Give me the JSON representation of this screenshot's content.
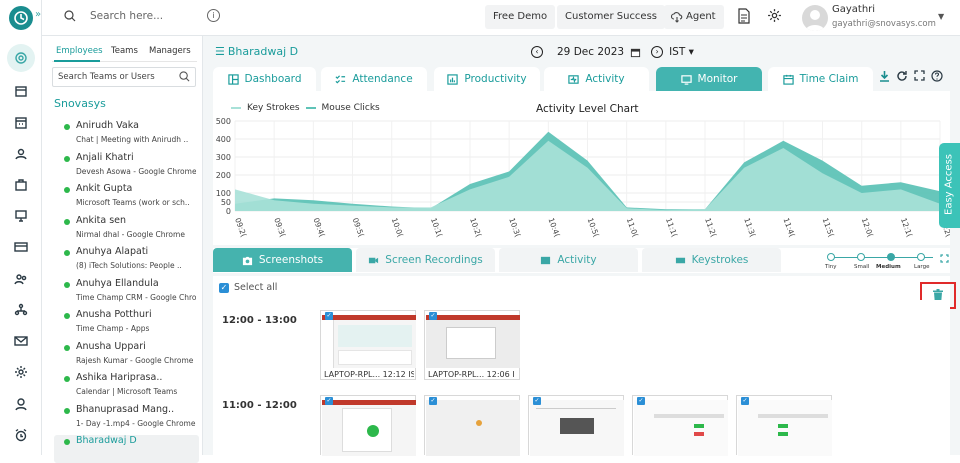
{
  "topbar": {
    "search_placeholder": "Search here...",
    "free_demo": "Free Demo",
    "customer_success": "Customer Success",
    "agent": "Agent",
    "user_name": "Gayathri",
    "user_email": "gayathri@snovasys.com"
  },
  "sidebar": {
    "tabs": [
      "Employees",
      "Teams",
      "Managers"
    ],
    "search_placeholder": "Search Teams or Users",
    "org": "Snovasys",
    "employees": [
      {
        "name": "Anirudh Vaka",
        "status": "Chat | Meeting with Anirudh ..",
        "active": false
      },
      {
        "name": "Anjali Khatri",
        "status": "Devesh Asowa - Google Chrome",
        "active": false
      },
      {
        "name": "Ankit Gupta",
        "status": "Microsoft Teams (work or sch..",
        "active": false
      },
      {
        "name": "Ankita sen",
        "status": "Nirmal dhal - Google Chrome",
        "active": false
      },
      {
        "name": "Anuhya Alapati",
        "status": "(8) iTech Solutions: People ..",
        "active": false
      },
      {
        "name": "Anuhya Ellandula",
        "status": "Time Champ CRM - Google Chrom",
        "active": false
      },
      {
        "name": "Anusha Potthuri",
        "status": "Time Champ - Apps",
        "active": false
      },
      {
        "name": "Anusha Uppari",
        "status": "Rajesh Kumar - Google Chrome",
        "active": false
      },
      {
        "name": "Ashika Hariprasa..",
        "status": "Calendar | Microsoft Teams",
        "active": false
      },
      {
        "name": "Bhanuprasad Mang..",
        "status": "1- Day -1.mp4 - Google Chrome",
        "active": false
      },
      {
        "name": "Bharadwaj D",
        "status": "",
        "active": true
      }
    ]
  },
  "header": {
    "employee": "Bharadwaj D",
    "date": "29 Dec 2023",
    "timezone": "IST"
  },
  "tabs": [
    {
      "label": "Dashboard",
      "icon": "dashboard-icon"
    },
    {
      "label": "Attendance",
      "icon": "attendance-icon"
    },
    {
      "label": "Productivity",
      "icon": "productivity-icon"
    },
    {
      "label": "Activity",
      "icon": "activity-icon"
    },
    {
      "label": "Monitor",
      "icon": "monitor-icon"
    },
    {
      "label": "Time Claim",
      "icon": "calendar-icon"
    }
  ],
  "chart_data": {
    "type": "area",
    "title": "Activity Level Chart",
    "series": [
      {
        "name": "Key Strokes",
        "values": [
          120,
          60,
          40,
          30,
          20,
          20,
          120,
          190,
          390,
          240,
          15,
          5,
          10,
          240,
          350,
          210,
          100,
          120,
          40
        ]
      },
      {
        "name": "Mouse Clicks",
        "values": [
          40,
          70,
          60,
          40,
          25,
          15,
          150,
          220,
          440,
          280,
          20,
          10,
          10,
          270,
          390,
          280,
          140,
          160,
          110
        ]
      }
    ],
    "x": [
      "09:20",
      "09:30",
      "09:40",
      "09:50",
      "10:00",
      "10:10",
      "10:20",
      "10:30",
      "10:40",
      "10:50",
      "11:00",
      "11:10",
      "11:20",
      "11:30",
      "11:40",
      "11:50",
      "12:00",
      "12:10",
      "12:20"
    ],
    "x_ticks_visible": [
      "09:2(",
      "09:3(",
      "09:4(",
      "09:5(",
      "10:0(",
      "10:1(",
      "10:2(",
      "10:3(",
      "10:4(",
      "10:5(",
      "11:0(",
      "11:1(",
      "11:2(",
      "11:3(",
      "11:4(",
      "11:5(",
      "12:0(",
      "12:1(",
      "12:2("
    ],
    "yticks": [
      0,
      50,
      100,
      200,
      300,
      400,
      500
    ],
    "ylim": [
      0,
      500
    ],
    "grid": true,
    "legend": "top-left",
    "colors": {
      "Key Strokes": "#a8e1d8",
      "Mouse Clicks": "#5fc3b7"
    }
  },
  "subtabs": [
    "Screenshots",
    "Screen Recordings",
    "Activity",
    "Keystrokes"
  ],
  "sizes": {
    "labels": [
      "Tiny",
      "Small",
      "Medium",
      "Large"
    ],
    "selected": "Medium"
  },
  "select_all": "Select all",
  "screenshots": {
    "groups": [
      {
        "hour": "12:00 - 13:00",
        "items": [
          {
            "caption": "LAPTOP-RPL... 12:12 IS"
          },
          {
            "caption": "LAPTOP-RPL... 12:06 I"
          }
        ]
      },
      {
        "hour": "11:00 - 12:00",
        "items": [
          {
            "caption": ""
          },
          {
            "caption": ""
          },
          {
            "caption": ""
          },
          {
            "caption": ""
          },
          {
            "caption": ""
          }
        ]
      }
    ]
  },
  "easy_access": "Easy Access",
  "colors": {
    "accent": "#1a9c9b",
    "accent_light": "#43b4b0",
    "status_online": "#2db84b",
    "highlight": "#e02a2a"
  }
}
